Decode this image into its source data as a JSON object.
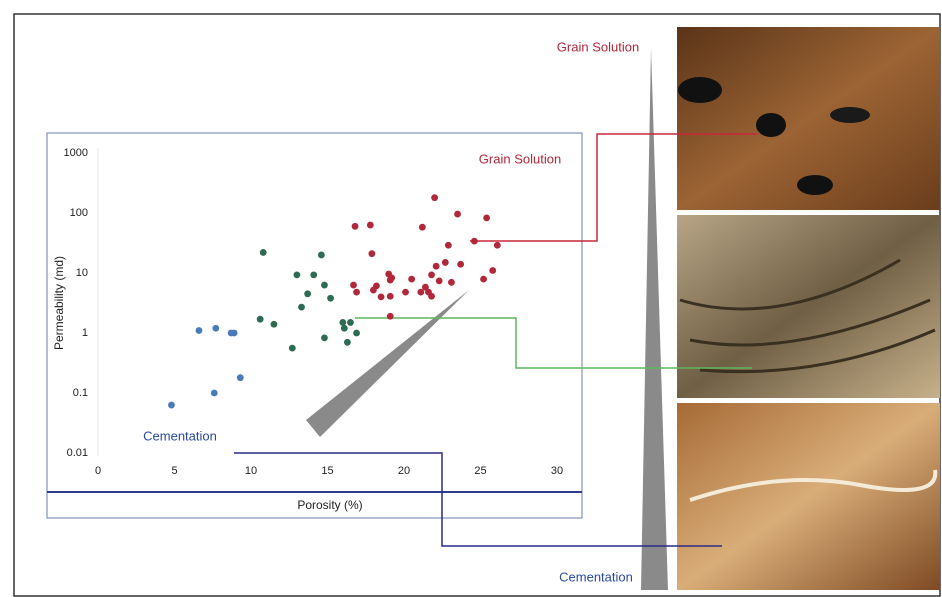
{
  "chart_data": {
    "type": "scatter",
    "xlabel": "Porosity (%)",
    "ylabel": "Permeability (md)",
    "xlim": [
      0,
      30
    ],
    "xticks": [
      0,
      5,
      10,
      15,
      20,
      25,
      30
    ],
    "ylim": [
      0.01,
      1000
    ],
    "yticks": [
      0.01,
      0.1,
      1,
      10,
      100,
      1000
    ],
    "yscale": "log",
    "annotations": [
      "Grain Solution",
      "Cementation",
      "Grain Solution",
      "Cementation"
    ],
    "series": [
      {
        "color": "#4a7ab8",
        "x": [
          4.8,
          6.6,
          7.7,
          7.6,
          8.7,
          8.9,
          9.3
        ],
        "values": [
          0.063,
          1.1,
          1.2,
          0.1,
          1,
          1,
          0.18
        ]
      },
      {
        "color": "#2e6b53",
        "x": [
          10.8,
          10.6,
          11.5,
          12.7,
          13.0,
          13.3,
          13.7,
          14.1,
          14.6,
          14.8,
          14.8,
          15.2,
          16.0,
          16.1,
          16.3,
          16.5,
          16.9
        ],
        "values": [
          22,
          1.7,
          1.4,
          0.56,
          9.3,
          2.7,
          4.5,
          9.3,
          20,
          0.83,
          6.3,
          3.8,
          1.5,
          1.2,
          0.7,
          1.5,
          1.0
        ]
      },
      {
        "color": "#b0283a",
        "x": [
          16.8,
          16.7,
          16.9,
          17.8,
          17.9,
          18.0,
          18.2,
          18.5,
          19.0,
          19.1,
          19.1,
          19.1,
          19.2,
          20.1,
          20.5,
          21.1,
          21.2,
          21.4,
          21.6,
          21.8,
          21.8,
          22.0,
          22.1,
          22.3,
          22.7,
          22.9,
          23.1,
          23.5,
          23.7,
          24.6,
          25.2,
          25.4,
          25.8,
          26.1
        ],
        "values": [
          60,
          6.3,
          4.8,
          63,
          21,
          5.2,
          6.1,
          4,
          9.6,
          7.6,
          4.1,
          1.9,
          8.3,
          4.8,
          7.9,
          4.8,
          58,
          5.8,
          4.8,
          4.1,
          9.3,
          180,
          13,
          7.4,
          15,
          29,
          7,
          96,
          14,
          34,
          7.9,
          83,
          11,
          29
        ]
      }
    ]
  }
}
